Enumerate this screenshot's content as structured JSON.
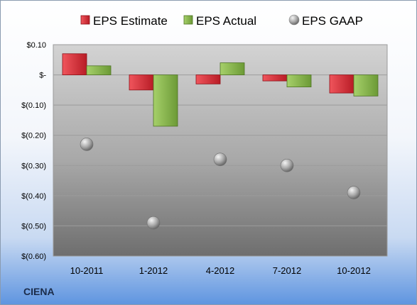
{
  "company": "CIENA",
  "chart_data": {
    "type": "bar",
    "categories": [
      "10-2011",
      "1-2012",
      "4-2012",
      "7-2012",
      "10-2012"
    ],
    "series": [
      {
        "name": "EPS Estimate",
        "type": "bar",
        "color": "#e0303a",
        "values": [
          0.07,
          -0.05,
          -0.03,
          -0.02,
          -0.06
        ]
      },
      {
        "name": "EPS Actual",
        "type": "bar",
        "color": "#8cbc50",
        "values": [
          0.03,
          -0.17,
          0.04,
          -0.04,
          -0.07
        ]
      },
      {
        "name": "EPS GAAP",
        "type": "scatter",
        "color": "#9a9a9a",
        "values": [
          -0.23,
          -0.49,
          -0.28,
          -0.3,
          -0.39
        ]
      }
    ],
    "ylim": [
      -0.6,
      0.1
    ],
    "yticks": [
      0.1,
      0,
      -0.1,
      -0.2,
      -0.3,
      -0.4,
      -0.5,
      -0.6
    ],
    "ytick_labels": [
      "$0.10",
      "$-",
      "$(0.10)",
      "$(0.20)",
      "$(0.30)",
      "$(0.40)",
      "$(0.50)",
      "$(0.60)"
    ],
    "grid": true,
    "legend": "top"
  }
}
